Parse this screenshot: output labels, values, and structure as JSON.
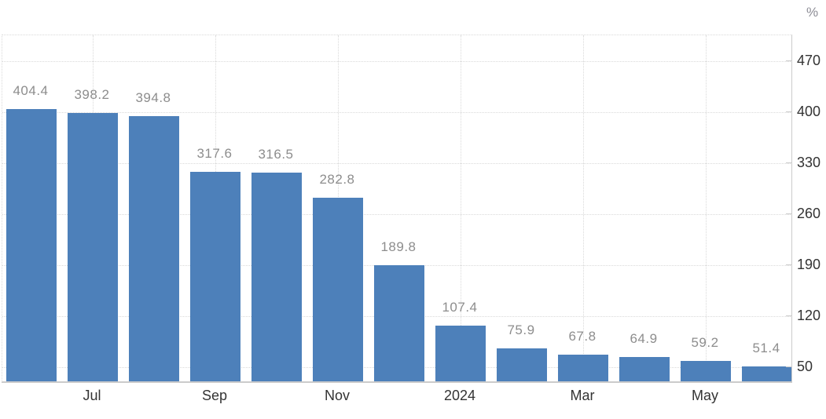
{
  "unit_label": "%",
  "chart_data": {
    "type": "bar",
    "title": "",
    "xlabel": "",
    "ylabel": "%",
    "legend_position": "none",
    "grid": "dotted horizontal and vertical gridlines at axis ticks",
    "bar_color": "#4d80ba",
    "data_label_color": "#8d8d8d",
    "axis_label_color": "#333333",
    "values": [
      404.4,
      398.2,
      394.8,
      317.6,
      316.5,
      282.8,
      189.8,
      107.4,
      75.9,
      67.8,
      64.9,
      59.2,
      51.4
    ],
    "data_labels": [
      "404.4",
      "398.2",
      "394.8",
      "317.6",
      "316.5",
      "282.8",
      "189.8",
      "107.4",
      "75.9",
      "67.8",
      "64.9",
      "59.2",
      "51.4"
    ],
    "x_ticks": [
      {
        "bar_index": 1,
        "label": "Jul"
      },
      {
        "bar_index": 3,
        "label": "Sep"
      },
      {
        "bar_index": 5,
        "label": "Nov"
      },
      {
        "bar_index": 7,
        "label": "2024"
      },
      {
        "bar_index": 9,
        "label": "Mar"
      },
      {
        "bar_index": 11,
        "label": "May"
      }
    ],
    "y_ticks": [
      470,
      400,
      330,
      260,
      190,
      120,
      50
    ],
    "ylim": [
      30,
      505
    ]
  }
}
